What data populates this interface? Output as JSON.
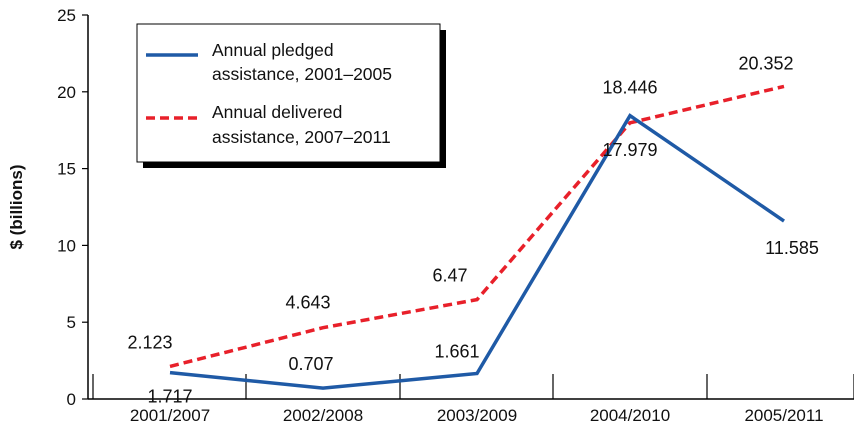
{
  "chart_data": {
    "type": "line",
    "x_categories": [
      "2001/2007",
      "2002/2008",
      "2003/2009",
      "2004/2010",
      "2005/2011"
    ],
    "ylabel": "$ (billions)",
    "xlabel": "",
    "ylim": [
      0,
      25
    ],
    "y_ticks": [
      "0",
      "5",
      "10",
      "15",
      "20",
      "25"
    ],
    "grid": false,
    "legend_position": "top-left (inside plot)",
    "series": [
      {
        "name_line1": "Annual pledged",
        "name_line2": "assistance, 2001–2005",
        "color": "#1f5aa6",
        "style": "solid",
        "values": [
          1.717,
          0.707,
          1.661,
          18.446,
          11.585
        ],
        "labels": [
          "1.717",
          "0.707",
          "1.661",
          "18.446",
          "11.585"
        ]
      },
      {
        "name_line1": "Annual delivered",
        "name_line2": "assistance, 2007–2011",
        "color": "#e8202a",
        "style": "dashed",
        "values": [
          2.123,
          4.643,
          6.47,
          17.979,
          20.352
        ],
        "labels": [
          "2.123",
          "4.643",
          "6.47",
          "17.979",
          "20.352"
        ]
      }
    ]
  }
}
